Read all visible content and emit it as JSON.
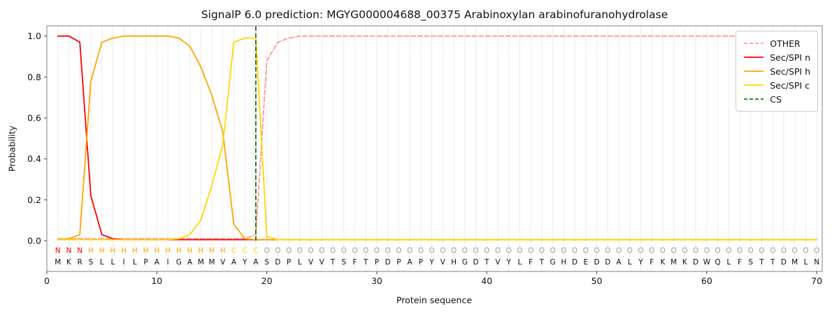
{
  "chart_data": {
    "type": "line",
    "title": "SignalP 6.0 prediction: MGYG000004688_00375 Arabinoxylan arabinofuranohydrolase",
    "xlabel": "Protein sequence",
    "ylabel": "Probability",
    "xlim": [
      0,
      70.5
    ],
    "ylim": [
      -0.15,
      1.05
    ],
    "xticks": [
      0,
      10,
      20,
      30,
      40,
      50,
      60,
      70
    ],
    "yticks": [
      0.0,
      0.2,
      0.4,
      0.6,
      0.8,
      1.0
    ],
    "grid": "vertical-line-per-residue",
    "legend_position": "upper right",
    "cs_position": 19,
    "sequence": "MKRSLLILPAIGAMMVAYASDPLVVTSFTPDPAPYVHGDTVYLFTGHDEDDALYFKMKDWQLFSTTDMLN",
    "region_labels": "NNNHHHHHHHHHHHHHCCCOOOOOOOOOOOOOOOOOOOOOOOOOOOOOOOOOOOOOOOOOOOOOOOOOO",
    "colors": {
      "other": "#ff9999",
      "n": "#ff0000",
      "h": "#ffa500",
      "c": "#ffd700",
      "cs": "#1a6e1a",
      "region_N": "#ff0000",
      "region_H": "#ffa500",
      "region_C": "#ffd700",
      "region_O": "#9e9e9e",
      "sequence_letter": "#111111",
      "grid_line": "#ebebeb",
      "frame": "#808080"
    },
    "series": [
      {
        "name": "OTHER",
        "color": "#ff9999",
        "dash": true,
        "values": [
          0.01,
          0.01,
          0.01,
          0.01,
          0.01,
          0.01,
          0.01,
          0.01,
          0.01,
          0.01,
          0.01,
          0.01,
          0.01,
          0.01,
          0.01,
          0.01,
          0.01,
          0.01,
          0.03,
          0.88,
          0.97,
          0.99,
          1.0,
          1.0,
          1.0,
          1.0,
          1.0,
          1.0,
          1.0,
          1.0,
          1.0,
          1.0,
          1.0,
          1.0,
          1.0,
          1.0,
          1.0,
          1.0,
          1.0,
          1.0,
          1.0,
          1.0,
          1.0,
          1.0,
          1.0,
          1.0,
          1.0,
          1.0,
          1.0,
          1.0,
          1.0,
          1.0,
          1.0,
          1.0,
          1.0,
          1.0,
          1.0,
          1.0,
          1.0,
          1.0,
          1.0,
          1.0,
          1.0,
          1.0,
          1.0,
          1.0,
          1.0,
          1.0,
          1.0,
          1.0
        ]
      },
      {
        "name": "Sec/SPI n",
        "color": "#ff0000",
        "dash": false,
        "values": [
          1.0,
          1.0,
          0.97,
          0.22,
          0.03,
          0.01,
          0.005,
          0.005,
          0.005,
          0.005,
          0.005,
          0.005,
          0.005,
          0.005,
          0.005,
          0.005,
          0.005,
          0.005,
          0.005,
          0.005,
          0.005,
          0.005,
          0.005,
          0.005,
          0.005,
          0.005,
          0.005,
          0.005,
          0.005,
          0.005,
          0.005,
          0.005,
          0.005,
          0.005,
          0.005,
          0.005,
          0.005,
          0.005,
          0.005,
          0.005,
          0.005,
          0.005,
          0.005,
          0.005,
          0.005,
          0.005,
          0.005,
          0.005,
          0.005,
          0.005,
          0.005,
          0.005,
          0.005,
          0.005,
          0.005,
          0.005,
          0.005,
          0.005,
          0.005,
          0.005,
          0.005,
          0.005,
          0.005,
          0.005,
          0.005,
          0.005,
          0.005,
          0.005,
          0.005,
          0.005
        ]
      },
      {
        "name": "Sec/SPI h",
        "color": "#ffa500",
        "dash": false,
        "values": [
          0.005,
          0.01,
          0.03,
          0.78,
          0.97,
          0.99,
          1.0,
          1.0,
          1.0,
          1.0,
          1.0,
          0.99,
          0.95,
          0.85,
          0.71,
          0.53,
          0.08,
          0.01,
          0.005,
          0.005,
          0.005,
          0.005,
          0.005,
          0.005,
          0.005,
          0.005,
          0.005,
          0.005,
          0.005,
          0.005,
          0.005,
          0.005,
          0.005,
          0.005,
          0.005,
          0.005,
          0.005,
          0.005,
          0.005,
          0.005,
          0.005,
          0.005,
          0.005,
          0.005,
          0.005,
          0.005,
          0.005,
          0.005,
          0.005,
          0.005,
          0.005,
          0.005,
          0.005,
          0.005,
          0.005,
          0.005,
          0.005,
          0.005,
          0.005,
          0.005,
          0.005,
          0.005,
          0.005,
          0.005,
          0.005,
          0.005,
          0.005,
          0.005,
          0.005,
          0.005
        ]
      },
      {
        "name": "Sec/SPI c",
        "color": "#ffd700",
        "dash": false,
        "values": [
          0.005,
          0.005,
          0.005,
          0.005,
          0.005,
          0.005,
          0.005,
          0.005,
          0.005,
          0.005,
          0.005,
          0.01,
          0.03,
          0.1,
          0.27,
          0.47,
          0.97,
          0.99,
          0.99,
          0.02,
          0.005,
          0.005,
          0.005,
          0.005,
          0.005,
          0.005,
          0.005,
          0.005,
          0.005,
          0.005,
          0.005,
          0.005,
          0.005,
          0.005,
          0.005,
          0.005,
          0.005,
          0.005,
          0.005,
          0.005,
          0.005,
          0.005,
          0.005,
          0.005,
          0.005,
          0.005,
          0.005,
          0.005,
          0.005,
          0.005,
          0.005,
          0.005,
          0.005,
          0.005,
          0.005,
          0.005,
          0.005,
          0.005,
          0.005,
          0.005,
          0.005,
          0.005,
          0.005,
          0.005,
          0.005,
          0.005,
          0.005,
          0.005,
          0.005,
          0.005
        ]
      }
    ],
    "legend": [
      {
        "label": "OTHER",
        "color": "#ff9999",
        "dash": true
      },
      {
        "label": "Sec/SPI n",
        "color": "#ff0000",
        "dash": false
      },
      {
        "label": "Sec/SPI h",
        "color": "#ffa500",
        "dash": false
      },
      {
        "label": "Sec/SPI c",
        "color": "#ffd700",
        "dash": false
      },
      {
        "label": "CS",
        "color": "#1a6e1a",
        "dash": true
      }
    ]
  }
}
